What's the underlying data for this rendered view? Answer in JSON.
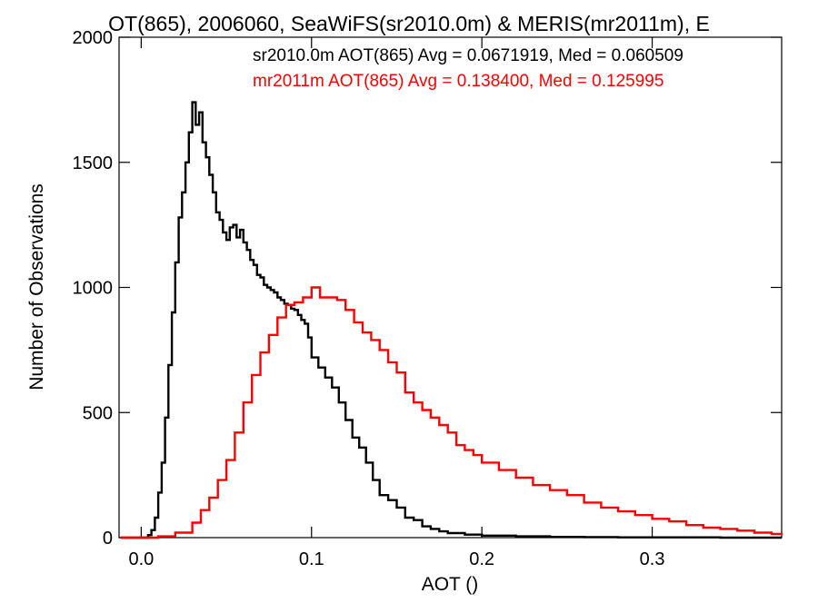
{
  "chart_data": {
    "type": "line",
    "style": "histogram-step",
    "title": "OT(865), 2006060, SeaWiFS(sr2010.0m) & MERIS(mr2011m), E",
    "xlabel": "AOT ()",
    "ylabel": "Number of Observations",
    "xlim": [
      -0.013,
      0.376
    ],
    "ylim": [
      0,
      2000
    ],
    "x_ticks": [
      {
        "value": 0.0,
        "label": "0.0"
      },
      {
        "value": 0.1,
        "label": "0.1"
      },
      {
        "value": 0.2,
        "label": "0.2"
      },
      {
        "value": 0.3,
        "label": "0.3"
      }
    ],
    "y_ticks": [
      {
        "value": 0,
        "label": "0"
      },
      {
        "value": 500,
        "label": "500"
      },
      {
        "value": 1000,
        "label": "1000"
      },
      {
        "value": 1500,
        "label": "1500"
      },
      {
        "value": 2000,
        "label": "2000"
      }
    ],
    "grid": false,
    "legend_position": "top-right",
    "bin_width": 0.002,
    "series": [
      {
        "legend": "sr2010.0m AOT(865) Avg = 0.0671919, Med = 0.060509",
        "color": "#000000",
        "x": [
          -0.012,
          0.0,
          0.004,
          0.006,
          0.008,
          0.01,
          0.012,
          0.014,
          0.016,
          0.018,
          0.02,
          0.022,
          0.024,
          0.026,
          0.028,
          0.03,
          0.032,
          0.034,
          0.036,
          0.038,
          0.04,
          0.042,
          0.044,
          0.046,
          0.048,
          0.05,
          0.052,
          0.054,
          0.056,
          0.058,
          0.06,
          0.062,
          0.064,
          0.066,
          0.068,
          0.07,
          0.072,
          0.074,
          0.076,
          0.078,
          0.08,
          0.082,
          0.084,
          0.086,
          0.088,
          0.09,
          0.092,
          0.094,
          0.096,
          0.098,
          0.1,
          0.104,
          0.108,
          0.112,
          0.116,
          0.12,
          0.124,
          0.128,
          0.132,
          0.136,
          0.14,
          0.145,
          0.15,
          0.155,
          0.16,
          0.165,
          0.17,
          0.175,
          0.18,
          0.19,
          0.2,
          0.22,
          0.24,
          0.26,
          0.28,
          0.3,
          0.32,
          0.34,
          0.36,
          0.376
        ],
        "y": [
          0,
          0,
          10,
          30,
          80,
          180,
          300,
          480,
          690,
          900,
          1100,
          1280,
          1380,
          1500,
          1620,
          1740,
          1650,
          1700,
          1580,
          1520,
          1450,
          1380,
          1300,
          1270,
          1220,
          1190,
          1240,
          1250,
          1200,
          1230,
          1180,
          1150,
          1110,
          1090,
          1050,
          1040,
          1010,
          1000,
          990,
          980,
          960,
          950,
          935,
          930,
          915,
          910,
          890,
          870,
          855,
          800,
          720,
          680,
          640,
          600,
          540,
          470,
          400,
          360,
          300,
          230,
          170,
          150,
          120,
          80,
          70,
          45,
          35,
          25,
          18,
          12,
          8,
          5,
          3,
          2,
          1,
          1,
          1,
          0,
          0,
          0
        ]
      },
      {
        "legend": "mr2011m AOT(865) Avg = 0.138400, Med = 0.125995",
        "color": "#ff0000",
        "x": [
          -0.012,
          0.01,
          0.02,
          0.03,
          0.035,
          0.04,
          0.045,
          0.05,
          0.055,
          0.06,
          0.065,
          0.07,
          0.075,
          0.08,
          0.085,
          0.09,
          0.095,
          0.1,
          0.105,
          0.11,
          0.115,
          0.12,
          0.125,
          0.13,
          0.135,
          0.14,
          0.145,
          0.15,
          0.155,
          0.16,
          0.165,
          0.17,
          0.175,
          0.18,
          0.185,
          0.19,
          0.195,
          0.2,
          0.21,
          0.22,
          0.23,
          0.24,
          0.25,
          0.26,
          0.27,
          0.28,
          0.29,
          0.3,
          0.31,
          0.32,
          0.33,
          0.34,
          0.35,
          0.36,
          0.37,
          0.376
        ],
        "y": [
          0,
          5,
          20,
          60,
          110,
          160,
          230,
          310,
          420,
          540,
          650,
          740,
          810,
          880,
          930,
          940,
          960,
          1000,
          960,
          960,
          950,
          910,
          860,
          820,
          790,
          750,
          700,
          660,
          580,
          540,
          510,
          480,
          450,
          420,
          370,
          350,
          330,
          300,
          270,
          240,
          210,
          190,
          170,
          140,
          120,
          105,
          90,
          75,
          65,
          50,
          40,
          35,
          28,
          20,
          15,
          12
        ]
      }
    ]
  }
}
